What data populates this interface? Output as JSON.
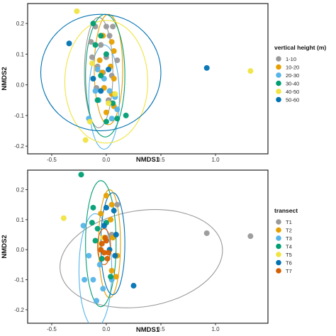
{
  "chart_data": [
    {
      "type": "scatter",
      "xlabel": "NMDS1",
      "ylabel": "NMDS2",
      "xlim": [
        -0.72,
        1.48
      ],
      "ylim": [
        -0.225,
        0.265
      ],
      "xticks": [
        -0.5,
        0.0,
        0.5,
        1.0
      ],
      "xtick_labels": [
        "-0.5",
        "0.0",
        "0.5",
        "1.0"
      ],
      "yticks": [
        -0.2,
        -0.1,
        0.0,
        0.1,
        0.2
      ],
      "ytick_labels": [
        "-0.2",
        "-0.1",
        "0.0",
        "0.1",
        "0.2"
      ],
      "grid": false,
      "legend_title": "vertical height (m)",
      "legend_position": "right",
      "series": [
        {
          "name": "1-10",
          "color": "#999999",
          "points": [
            [
              -0.1,
              0.19
            ],
            [
              0.0,
              0.19
            ],
            [
              0.06,
              0.19
            ],
            [
              -0.14,
              0.14
            ],
            [
              -0.05,
              0.13
            ],
            [
              0.03,
              0.16
            ],
            [
              -0.13,
              0.09
            ],
            [
              0.0,
              0.09
            ],
            [
              -0.08,
              0.06
            ],
            [
              0.1,
              0.08
            ],
            [
              -0.03,
              0.04
            ],
            [
              0.05,
              0.03
            ],
            [
              -0.09,
              -0.01
            ],
            [
              0.02,
              -0.05
            ]
          ],
          "ellipse": {
            "cx": -0.07,
            "cy": 0.04,
            "rx": 0.13,
            "ry": 0.18,
            "angle": 0
          }
        },
        {
          "name": "10-20",
          "color": "#E69F00",
          "points": [
            [
              -0.03,
              0.16
            ],
            [
              0.05,
              0.14
            ],
            [
              0.07,
              0.11
            ],
            [
              -0.06,
              0.08
            ],
            [
              0.04,
              0.06
            ],
            [
              -0.04,
              0.04
            ],
            [
              0.07,
              0.02
            ],
            [
              -0.02,
              -0.01
            ],
            [
              0.05,
              -0.03
            ],
            [
              0.0,
              -0.09
            ],
            [
              0.07,
              -0.07
            ]
          ],
          "ellipse": {
            "cx": 0.02,
            "cy": 0.05,
            "rx": 0.13,
            "ry": 0.18,
            "angle": 0
          }
        },
        {
          "name": "20-30",
          "color": "#56B4E9",
          "points": [
            [
              -0.08,
              0.05
            ],
            [
              -0.02,
              0.02
            ],
            [
              -0.1,
              -0.02
            ],
            [
              0.03,
              -0.02
            ],
            [
              -0.07,
              -0.05
            ],
            [
              0.08,
              -0.04
            ],
            [
              -0.16,
              -0.11
            ],
            [
              0.05,
              -0.11
            ],
            [
              0.1,
              -0.08
            ]
          ],
          "ellipse": {
            "cx": -0.02,
            "cy": -0.04,
            "rx": 0.14,
            "ry": 0.17,
            "angle": 0
          }
        },
        {
          "name": "30-40",
          "color": "#009E73",
          "points": [
            [
              -0.12,
              0.2
            ],
            [
              -0.05,
              0.16
            ],
            [
              -0.1,
              0.13
            ],
            [
              0.0,
              0.1
            ],
            [
              -0.05,
              0.03
            ],
            [
              -0.08,
              -0.05
            ],
            [
              0.06,
              -0.06
            ],
            [
              0.0,
              -0.12
            ],
            [
              0.1,
              -0.11
            ],
            [
              0.18,
              -0.1
            ]
          ],
          "ellipse": {
            "cx": -0.01,
            "cy": 0.03,
            "rx": 0.18,
            "ry": 0.2,
            "angle": 0
          }
        },
        {
          "name": "40-50",
          "color": "#F0E442",
          "points": [
            [
              -0.27,
              0.24
            ],
            [
              -0.13,
              0.07
            ],
            [
              0.02,
              -0.06
            ],
            [
              -0.15,
              -0.12
            ],
            [
              -0.19,
              -0.18
            ],
            [
              1.32,
              0.045
            ],
            [
              0.08,
              -0.03
            ]
          ],
          "ellipse": {
            "cx": 0.0,
            "cy": 0.01,
            "rx": 0.38,
            "ry": 0.2,
            "angle": 0
          }
        },
        {
          "name": "50-60",
          "color": "#0072B2",
          "points": [
            [
              -0.34,
              0.135
            ],
            [
              0.92,
              0.055
            ],
            [
              -0.12,
              0.02
            ],
            [
              0.02,
              0.05
            ],
            [
              -0.05,
              -0.02
            ]
          ],
          "ellipse": {
            "cx": -0.05,
            "cy": 0.04,
            "rx": 0.55,
            "ry": 0.19,
            "angle": 0
          }
        }
      ]
    },
    {
      "type": "scatter",
      "xlabel": "NMDS1",
      "ylabel": "NMDS2",
      "xlim": [
        -0.72,
        1.48
      ],
      "ylim": [
        -0.245,
        0.265
      ],
      "xticks": [
        -0.5,
        0.0,
        0.5,
        1.0
      ],
      "xtick_labels": [
        "-0.5",
        "0.0",
        "0.5",
        "1.0"
      ],
      "yticks": [
        -0.2,
        -0.1,
        0.0,
        0.1,
        0.2
      ],
      "ytick_labels": [
        "-0.2",
        "-0.1",
        "0.0",
        "0.1",
        "0.2"
      ],
      "grid": false,
      "legend_title": "transect",
      "legend_position": "right",
      "series": [
        {
          "name": "T1",
          "color": "#999999",
          "points": [
            [
              0.92,
              0.055
            ],
            [
              1.32,
              0.045
            ],
            [
              0.1,
              0.15
            ],
            [
              0.05,
              0.05
            ]
          ],
          "ellipse": {
            "cx": 0.32,
            "cy": -0.03,
            "rx": 0.75,
            "ry": 0.16,
            "angle": 9
          }
        },
        {
          "name": "T2",
          "color": "#E69F00",
          "points": [
            [
              0.0,
              0.18
            ],
            [
              0.05,
              0.15
            ],
            [
              -0.05,
              0.12
            ],
            [
              0.04,
              0.1
            ],
            [
              0.06,
              0.04
            ],
            [
              0.1,
              -0.02
            ],
            [
              0.05,
              -0.07
            ],
            [
              0.09,
              -0.09
            ]
          ],
          "ellipse": {
            "cx": 0.03,
            "cy": 0.02,
            "rx": 0.1,
            "ry": 0.18,
            "angle": 0
          }
        },
        {
          "name": "T3",
          "color": "#56B4E9",
          "points": [
            [
              -0.21,
              0.08
            ],
            [
              -0.16,
              -0.02
            ],
            [
              -0.2,
              -0.1
            ],
            [
              -0.12,
              -0.1
            ],
            [
              -0.06,
              -0.05
            ],
            [
              -0.03,
              -0.13
            ],
            [
              -0.09,
              -0.17
            ],
            [
              0.05,
              -0.1
            ]
          ],
          "ellipse": {
            "cx": -0.1,
            "cy": -0.07,
            "rx": 0.15,
            "ry": 0.19,
            "angle": 0
          }
        },
        {
          "name": "T4",
          "color": "#009E73",
          "points": [
            [
              -0.23,
              0.25
            ],
            [
              -0.12,
              0.14
            ],
            [
              -0.13,
              0.09
            ],
            [
              -0.08,
              0.07
            ],
            [
              0.0,
              0.09
            ],
            [
              -0.1,
              0.03
            ],
            [
              -0.04,
              -0.03
            ],
            [
              0.04,
              -0.09
            ]
          ],
          "ellipse": {
            "cx": -0.05,
            "cy": 0.02,
            "rx": 0.14,
            "ry": 0.21,
            "angle": 0
          }
        },
        {
          "name": "T5",
          "color": "#F0E442",
          "points": [
            [
              -0.39,
              0.105
            ],
            [
              -0.03,
              0.04
            ]
          ],
          "ellipse": null
        },
        {
          "name": "T6",
          "color": "#0072B2",
          "points": [
            [
              0.0,
              0.14
            ],
            [
              0.07,
              0.13
            ],
            [
              -0.02,
              0.08
            ],
            [
              0.09,
              0.05
            ],
            [
              0.03,
              0.0
            ],
            [
              0.08,
              -0.02
            ],
            [
              0.25,
              -0.12
            ]
          ],
          "ellipse": {
            "cx": 0.06,
            "cy": 0.02,
            "rx": 0.11,
            "ry": 0.17,
            "angle": 0
          }
        },
        {
          "name": "T7",
          "color": "#D55E00",
          "points": [
            [
              -0.04,
              0.02
            ],
            [
              0.0,
              0.03
            ],
            [
              -0.02,
              -0.01
            ],
            [
              0.02,
              -0.01
            ],
            [
              -0.05,
              0.0
            ],
            [
              0.01,
              -0.03
            ],
            [
              -0.01,
              0.04
            ]
          ],
          "ellipse": {
            "cx": -0.02,
            "cy": 0.01,
            "rx": 0.06,
            "ry": 0.06,
            "angle": 0
          }
        }
      ]
    }
  ]
}
